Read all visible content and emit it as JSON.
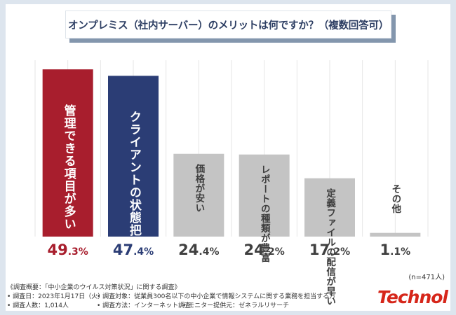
{
  "chart_data": {
    "type": "bar",
    "title": "オンプレミス（社内サーバー）のメリットは何ですか？（複数回答可）",
    "categories": [
      "管理できる項目が多い",
      "クライアントの状態把握が早い",
      "価格が安い",
      "レポートの種類が豊富",
      "定義ファイルの配信が早い",
      "その他"
    ],
    "values": [
      49.3,
      47.4,
      24.4,
      24.2,
      17.2,
      1.1
    ],
    "value_labels": [
      {
        "int": "49",
        "dec": ".3%"
      },
      {
        "int": "47",
        "dec": ".4%"
      },
      {
        "int": "24",
        "dec": ".4%"
      },
      {
        "int": "24",
        "dec": ".2%"
      },
      {
        "int": "17",
        "dec": ".2%"
      },
      {
        "int": "1",
        "dec": ".1%"
      }
    ],
    "colors": [
      "#a81e2d",
      "#2b3d75",
      "#c4c4c4",
      "#c4c4c4",
      "#c4c4c4",
      "#c4c4c4"
    ],
    "ylim": [
      0,
      52
    ],
    "xlabel": "",
    "ylabel": "",
    "grid": true,
    "sample_note": "(n=471人)"
  },
  "footer": {
    "heading": "《調査概要：「中小企業のウイルス対策状況」に関する調査》",
    "date": "• 調査日：2023年1月17日（火）",
    "target": "• 調査対象：従業員300名以下の中小企業で情報システムに関する業務を担当する方",
    "count": "• 調査人数：1,014人",
    "method": "• 調査方法：インターネット調査",
    "provider": "• モニター提供元：ゼネラルリサーチ"
  },
  "logo": "Technol",
  "accent": "#d6261a"
}
